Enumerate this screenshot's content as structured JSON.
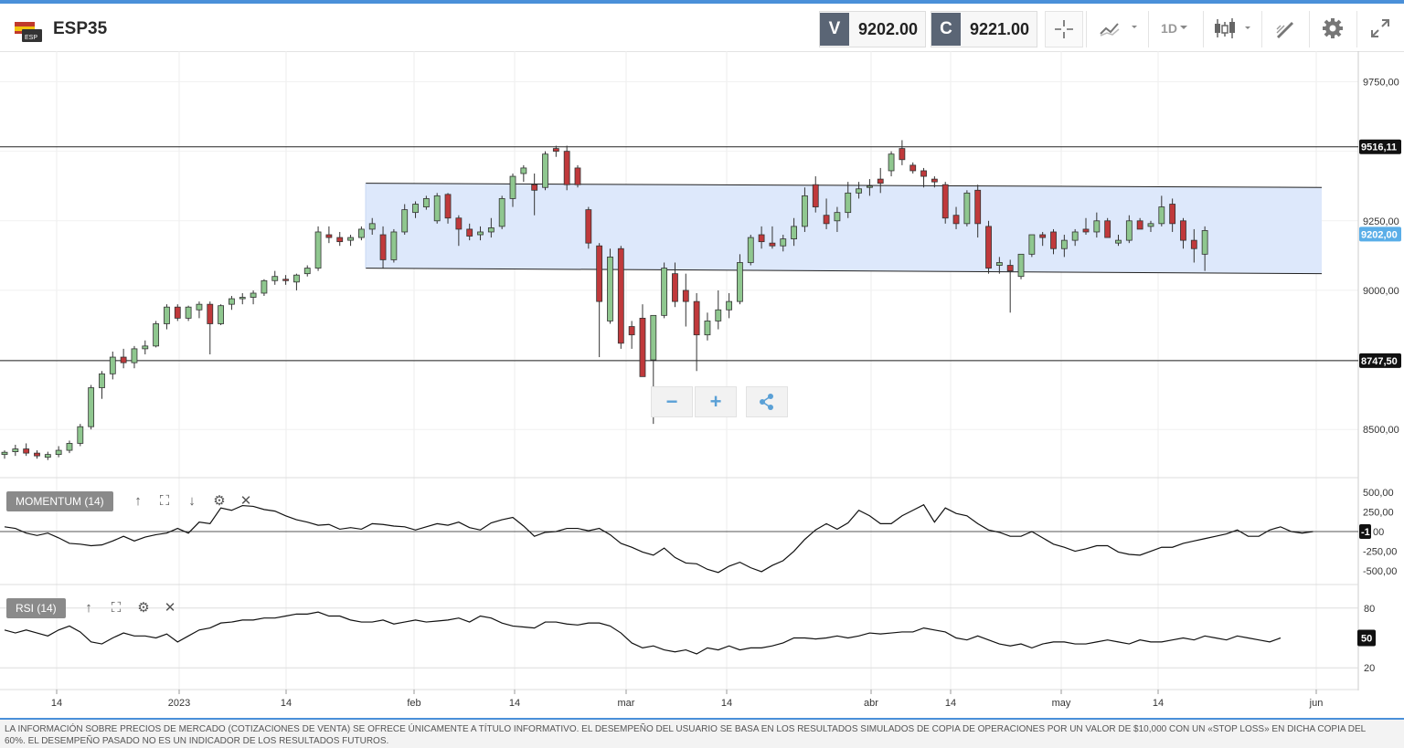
{
  "header": {
    "symbol": "ESP35",
    "flag_text": "ESP",
    "sell_tag": "V",
    "sell_price": "9202.00",
    "buy_tag": "C",
    "buy_price": "9221.00",
    "timeframe": "1D",
    "toolbar_icons": [
      "crosshair-icon",
      "line-chart-type-icon",
      "timeframe-selector",
      "candlestick-type-icon",
      "drawing-tools-icon",
      "gear-icon",
      "fullscreen-icon"
    ]
  },
  "colors": {
    "accent": "#4a90d9",
    "bull": "#8fc78f",
    "bear": "#c0393b",
    "channel": "#dfe9fb",
    "price_tag": "#5aaee8"
  },
  "price_axis": {
    "ticks": [
      "9750,00",
      "9250,00",
      "9000,00",
      "8500,00"
    ],
    "markers": [
      {
        "label": "9516,11",
        "value": 9516.11,
        "style": "dark"
      },
      {
        "label": "9202,00",
        "value": 9202,
        "style": "blue"
      },
      {
        "label": "8747,50",
        "value": 8747.5,
        "style": "dark"
      }
    ]
  },
  "time_axis": [
    "14",
    "2023",
    "14",
    "feb",
    "14",
    "mar",
    "14",
    "abr",
    "14",
    "may",
    "14",
    "jun"
  ],
  "momentum": {
    "label": "MOMENTUM (14)",
    "ticks": [
      "500,00",
      "250,00",
      "-250,00",
      "-500,00"
    ],
    "current": "-1",
    "zero_tick": "00"
  },
  "rsi": {
    "label": "RSI (14)",
    "ticks": [
      "80",
      "20"
    ],
    "current": "50"
  },
  "chart_data": {
    "type": "candlestick",
    "title": "ESP35",
    "timeframe": "1D",
    "ylim": [
      8330,
      9860
    ],
    "x_tick_labels": [
      "14",
      "2023",
      "14",
      "feb",
      "14",
      "mar",
      "14",
      "abr",
      "14",
      "may",
      "14",
      "jun"
    ],
    "horizontal_lines": [
      9516.11,
      8747.5
    ],
    "channel": {
      "upper": [
        9385,
        9370
      ],
      "lower": [
        9080,
        9060
      ]
    },
    "candles_ohlc": [
      [
        8410,
        8425,
        8395,
        8418
      ],
      [
        8420,
        8445,
        8405,
        8430
      ],
      [
        8430,
        8450,
        8405,
        8415
      ],
      [
        8415,
        8425,
        8395,
        8405
      ],
      [
        8400,
        8420,
        8390,
        8410
      ],
      [
        8410,
        8440,
        8400,
        8425
      ],
      [
        8425,
        8460,
        8415,
        8450
      ],
      [
        8450,
        8520,
        8440,
        8510
      ],
      [
        8510,
        8660,
        8500,
        8650
      ],
      [
        8650,
        8710,
        8610,
        8700
      ],
      [
        8700,
        8780,
        8680,
        8760
      ],
      [
        8760,
        8790,
        8720,
        8740
      ],
      [
        8740,
        8800,
        8720,
        8790
      ],
      [
        8790,
        8820,
        8770,
        8800
      ],
      [
        8800,
        8890,
        8795,
        8880
      ],
      [
        8880,
        8950,
        8860,
        8940
      ],
      [
        8940,
        8950,
        8890,
        8900
      ],
      [
        8900,
        8945,
        8890,
        8940
      ],
      [
        8930,
        8960,
        8900,
        8950
      ],
      [
        8950,
        8960,
        8770,
        8880
      ],
      [
        8880,
        8950,
        8875,
        8945
      ],
      [
        8950,
        8980,
        8930,
        8970
      ],
      [
        8970,
        8990,
        8950,
        8975
      ],
      [
        8975,
        9000,
        8950,
        8990
      ],
      [
        8990,
        9040,
        8980,
        9035
      ],
      [
        9035,
        9070,
        9020,
        9050
      ],
      [
        9040,
        9055,
        9020,
        9035
      ],
      [
        9030,
        9060,
        9000,
        9055
      ],
      [
        9060,
        9090,
        9050,
        9080
      ],
      [
        9080,
        9230,
        9070,
        9210
      ],
      [
        9200,
        9230,
        9170,
        9190
      ],
      [
        9190,
        9210,
        9160,
        9175
      ],
      [
        9180,
        9200,
        9160,
        9190
      ],
      [
        9190,
        9230,
        9180,
        9220
      ],
      [
        9220,
        9260,
        9200,
        9240
      ],
      [
        9200,
        9230,
        9080,
        9110
      ],
      [
        9110,
        9220,
        9100,
        9210
      ],
      [
        9210,
        9310,
        9200,
        9290
      ],
      [
        9280,
        9320,
        9260,
        9310
      ],
      [
        9300,
        9340,
        9290,
        9330
      ],
      [
        9250,
        9350,
        9240,
        9340
      ],
      [
        9345,
        9350,
        9240,
        9260
      ],
      [
        9260,
        9270,
        9160,
        9220
      ],
      [
        9220,
        9240,
        9180,
        9195
      ],
      [
        9200,
        9230,
        9180,
        9210
      ],
      [
        9210,
        9260,
        9190,
        9225
      ],
      [
        9230,
        9340,
        9220,
        9330
      ],
      [
        9330,
        9420,
        9300,
        9410
      ],
      [
        9420,
        9450,
        9390,
        9440
      ],
      [
        9380,
        9420,
        9270,
        9360
      ],
      [
        9370,
        9500,
        9360,
        9490
      ],
      [
        9510,
        9520,
        9480,
        9500
      ],
      [
        9500,
        9520,
        9360,
        9380
      ],
      [
        9440,
        9450,
        9370,
        9380
      ],
      [
        9290,
        9300,
        9150,
        9170
      ],
      [
        9160,
        9170,
        8760,
        8960
      ],
      [
        8890,
        9150,
        8880,
        9120
      ],
      [
        9150,
        9160,
        8790,
        8810
      ],
      [
        8870,
        8890,
        8790,
        8840
      ],
      [
        8900,
        8950,
        8720,
        8690
      ],
      [
        8750,
        8880,
        8520,
        8910
      ],
      [
        8910,
        9100,
        8900,
        9080
      ],
      [
        9060,
        9100,
        8940,
        8960
      ],
      [
        9000,
        9060,
        8870,
        8960
      ],
      [
        8960,
        8990,
        8710,
        8840
      ],
      [
        8840,
        8920,
        8820,
        8890
      ],
      [
        8890,
        9000,
        8860,
        8930
      ],
      [
        8930,
        8990,
        8900,
        8960
      ],
      [
        8960,
        9130,
        8950,
        9100
      ],
      [
        9100,
        9200,
        9090,
        9190
      ],
      [
        9200,
        9230,
        9150,
        9175
      ],
      [
        9170,
        9230,
        9150,
        9160
      ],
      [
        9160,
        9200,
        9140,
        9185
      ],
      [
        9185,
        9260,
        9160,
        9230
      ],
      [
        9230,
        9370,
        9210,
        9340
      ],
      [
        9380,
        9410,
        9280,
        9300
      ],
      [
        9270,
        9330,
        9220,
        9240
      ],
      [
        9250,
        9300,
        9210,
        9280
      ],
      [
        9280,
        9390,
        9260,
        9350
      ],
      [
        9350,
        9390,
        9330,
        9365
      ],
      [
        9370,
        9400,
        9340,
        9375
      ],
      [
        9400,
        9440,
        9350,
        9385
      ],
      [
        9430,
        9500,
        9410,
        9490
      ],
      [
        9510,
        9540,
        9450,
        9470
      ],
      [
        9450,
        9460,
        9420,
        9430
      ],
      [
        9430,
        9440,
        9370,
        9410
      ],
      [
        9400,
        9410,
        9370,
        9390
      ],
      [
        9380,
        9390,
        9240,
        9260
      ],
      [
        9270,
        9300,
        9220,
        9240
      ],
      [
        9240,
        9360,
        9230,
        9350
      ],
      [
        9360,
        9380,
        9190,
        9240
      ],
      [
        9230,
        9250,
        9060,
        9080
      ],
      [
        9090,
        9120,
        9060,
        9100
      ],
      [
        9090,
        9110,
        8920,
        9070
      ],
      [
        9050,
        9130,
        9040,
        9130
      ],
      [
        9130,
        9200,
        9120,
        9200
      ],
      [
        9200,
        9210,
        9160,
        9190
      ],
      [
        9210,
        9220,
        9130,
        9150
      ],
      [
        9150,
        9200,
        9120,
        9180
      ],
      [
        9180,
        9220,
        9160,
        9210
      ],
      [
        9220,
        9260,
        9200,
        9210
      ],
      [
        9210,
        9280,
        9190,
        9250
      ],
      [
        9250,
        9260,
        9200,
        9190
      ],
      [
        9170,
        9200,
        9160,
        9180
      ],
      [
        9180,
        9270,
        9170,
        9250
      ],
      [
        9250,
        9260,
        9220,
        9220
      ],
      [
        9230,
        9250,
        9210,
        9240
      ],
      [
        9240,
        9340,
        9230,
        9300
      ],
      [
        9310,
        9330,
        9210,
        9240
      ],
      [
        9250,
        9260,
        9150,
        9180
      ],
      [
        9180,
        9220,
        9100,
        9150
      ],
      [
        9130,
        9230,
        9070,
        9215
      ]
    ],
    "momentum_series": [
      60,
      40,
      -20,
      -50,
      -20,
      -80,
      -150,
      -160,
      -180,
      -170,
      -120,
      -60,
      -120,
      -70,
      -40,
      -20,
      40,
      -20,
      120,
      100,
      300,
      270,
      330,
      320,
      280,
      260,
      200,
      150,
      120,
      80,
      90,
      30,
      50,
      30,
      100,
      90,
      70,
      60,
      20,
      60,
      100,
      80,
      120,
      50,
      20,
      110,
      150,
      180,
      70,
      -60,
      -10,
      0,
      40,
      40,
      10,
      40,
      -40,
      -150,
      -200,
      -260,
      -300,
      -210,
      -330,
      -400,
      -410,
      -480,
      -520,
      -440,
      -390,
      -460,
      -510,
      -430,
      -370,
      -250,
      -100,
      20,
      100,
      30,
      110,
      270,
      200,
      100,
      100,
      200,
      270,
      340,
      120,
      300,
      230,
      200,
      100,
      20,
      -10,
      -60,
      -60,
      0,
      -80,
      -160,
      -200,
      -250,
      -220,
      -180,
      -180,
      -260,
      -290,
      -300,
      -250,
      -200,
      -200,
      -150,
      -120,
      -90,
      -60,
      -30,
      20,
      -60,
      -60,
      20,
      60,
      0,
      -20,
      0
    ],
    "rsi_series": [
      58,
      55,
      58,
      55,
      52,
      58,
      62,
      56,
      46,
      44,
      50,
      55,
      52,
      52,
      50,
      54,
      46,
      52,
      58,
      60,
      65,
      66,
      68,
      68,
      70,
      70,
      72,
      74,
      74,
      76,
      72,
      72,
      68,
      66,
      66,
      68,
      64,
      66,
      68,
      66,
      67,
      68,
      70,
      66,
      72,
      70,
      65,
      62,
      61,
      60,
      66,
      66,
      64,
      63,
      65,
      65,
      62,
      55,
      45,
      40,
      42,
      38,
      36,
      38,
      34,
      40,
      38,
      42,
      38,
      40,
      40,
      42,
      45,
      50,
      50,
      49,
      50,
      52,
      50,
      52,
      55,
      54,
      55,
      56,
      56,
      60,
      58,
      56,
      50,
      48,
      52,
      48,
      44,
      42,
      44,
      40,
      44,
      46,
      46,
      44,
      44,
      46,
      48,
      46,
      44,
      48,
      46,
      46,
      48,
      50,
      48,
      52,
      50,
      48,
      52,
      50,
      48,
      46,
      50
    ]
  },
  "floating_controls": {
    "zoom_out": "−",
    "zoom_in": "+"
  },
  "disclaimer": "LA INFORMACIÓN SOBRE PRECIOS DE MERCADO (COTIZACIONES DE VENTA) SE OFRECE ÚNICAMENTE A TÍTULO INFORMATIVO. EL DESEMPEÑO DEL USUARIO SE BASA EN LOS RESULTADOS SIMULADOS DE COPIA DE OPERACIONES POR UN VALOR DE $10,000 CON UN «STOP LOSS» EN DICHA COPIA DEL 60%. EL DESEMPEÑO PASADO NO ES UN INDICADOR DE LOS RESULTADOS FUTUROS."
}
